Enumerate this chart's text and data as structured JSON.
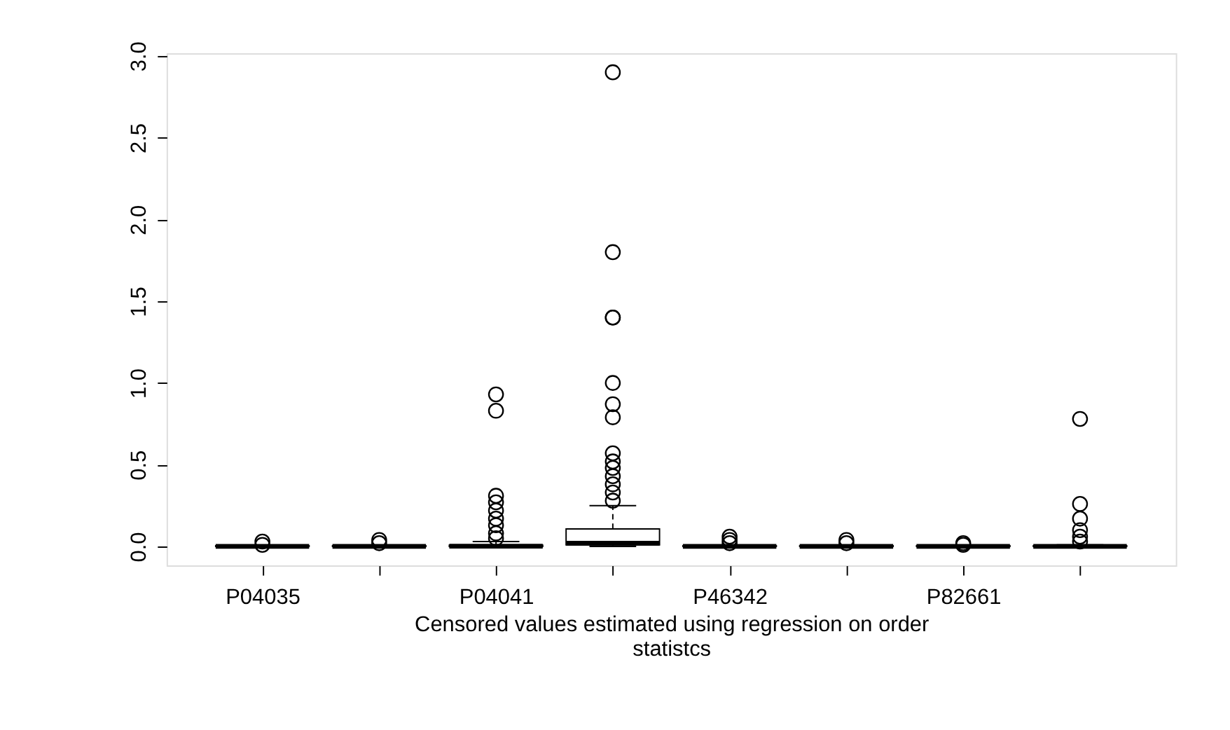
{
  "chart_data": {
    "type": "box",
    "xlabel": "Censored values estimated using regression on order statistcs",
    "categories": [
      "P04035",
      null,
      "P04041",
      null,
      "P46342",
      null,
      "P82661",
      null
    ],
    "boxes": [
      {
        "low": 0,
        "q1": 0,
        "median": 0.001,
        "q3": 0.004,
        "high": 0.008,
        "outliers": [
          0.03,
          0.01
        ]
      },
      {
        "low": 0,
        "q1": 0,
        "median": 0.001,
        "q3": 0.004,
        "high": 0.008,
        "outliers": [
          0.04,
          0.02
        ]
      },
      {
        "low": 0,
        "q1": 0,
        "median": 0.002,
        "q3": 0.008,
        "high": 0.03,
        "outliers": [
          0.93,
          0.83,
          0.31,
          0.27,
          0.22,
          0.17,
          0.13,
          0.08,
          0.05
        ]
      },
      {
        "low": 0,
        "q1": 0.01,
        "median": 0.02,
        "q3": 0.107,
        "high": 0.25,
        "outliers": [
          2.9,
          1.8,
          1.4,
          1.4,
          1.0,
          0.87,
          0.79,
          0.57,
          0.52,
          0.48,
          0.43,
          0.38,
          0.33,
          0.28
        ]
      },
      {
        "low": 0,
        "q1": 0,
        "median": 0.001,
        "q3": 0.004,
        "high": 0.008,
        "outliers": [
          0.06,
          0.04,
          0.02
        ]
      },
      {
        "low": 0,
        "q1": 0,
        "median": 0.001,
        "q3": 0.004,
        "high": 0.008,
        "outliers": [
          0.04,
          0.02
        ]
      },
      {
        "low": 0,
        "q1": 0,
        "median": 0.001,
        "q3": 0.004,
        "high": 0.008,
        "outliers": [
          0.02,
          0.01
        ]
      },
      {
        "low": 0,
        "q1": 0,
        "median": 0.001,
        "q3": 0.004,
        "high": 0.01,
        "outliers": [
          0.78,
          0.26,
          0.17,
          0.1,
          0.06,
          0.03
        ]
      }
    ],
    "ylim": [
      -0.116,
      3.016
    ],
    "yticks": [
      {
        "value": 0,
        "label": "0.0"
      },
      0.5,
      {
        "value": 1,
        "label": "1.0"
      },
      1.5,
      {
        "value": 2,
        "label": "2.0"
      },
      2.5,
      {
        "value": 3,
        "label": "3.0"
      }
    ],
    "grid": false
  }
}
